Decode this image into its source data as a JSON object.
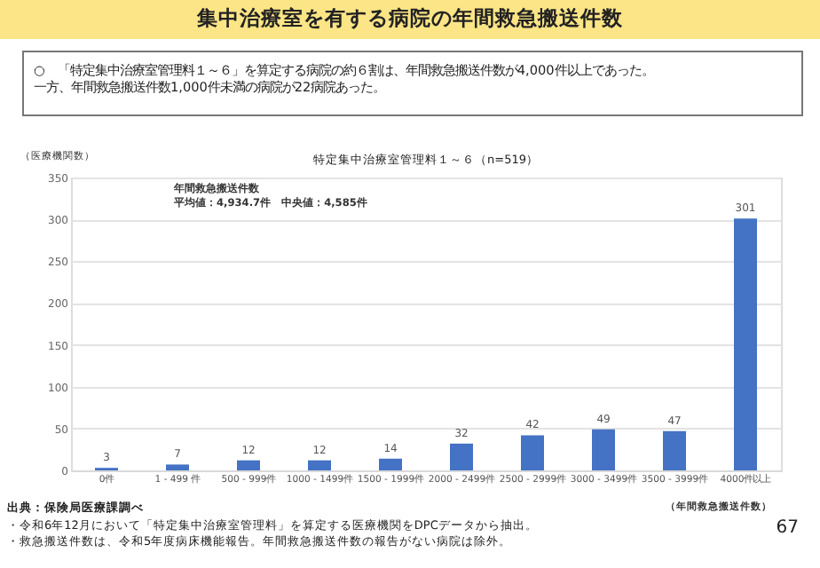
{
  "chart_data": {
    "type": "bar",
    "title": "集中治療室を有する病院の年間救急搬送件数",
    "subtitle": "○　「特定集中治療室管理料１～６」を算定する病院の約６割は、年間救急搬送件数が4,000件以上であった。一方、年間救急搬送件数1,000件未満の病院が22病院あった。",
    "categories": [
      "0件",
      "1 - 499 件",
      "500 - 999件",
      "1000 - 1499件",
      "1500 - 1999件",
      "2000 - 2499件",
      "2500 - 2999件",
      "3000 - 3499件",
      "3500 - 3999件",
      "4000件以上"
    ],
    "values": [
      3,
      7,
      12,
      12,
      14,
      32,
      42,
      49,
      47,
      301
    ],
    "color": "#4472c4",
    "ylim": [
      0,
      350
    ],
    "yticks": [
      0,
      50,
      100,
      150,
      200,
      250,
      300,
      350
    ],
    "ylabel": "（医療機関数）",
    "xlabel": "（年間救急搬送件数）",
    "grid": "y",
    "data_labels": true,
    "annotations": [
      "特定集中治療室管理料１～６（n=519）",
      "年間救急搬送件数",
      "平均値：4,934.7件　中央値：4,585件",
      "出典：保険局医療課調べ",
      "・令和6年12月において「特定集中治療室管理料」を算定する医療機関をDPCデータから抽出。",
      "・救急搬送件数は、令和5年度病床機能報告。年間救急搬送件数の報告がない病院は除外。",
      "67"
    ]
  }
}
